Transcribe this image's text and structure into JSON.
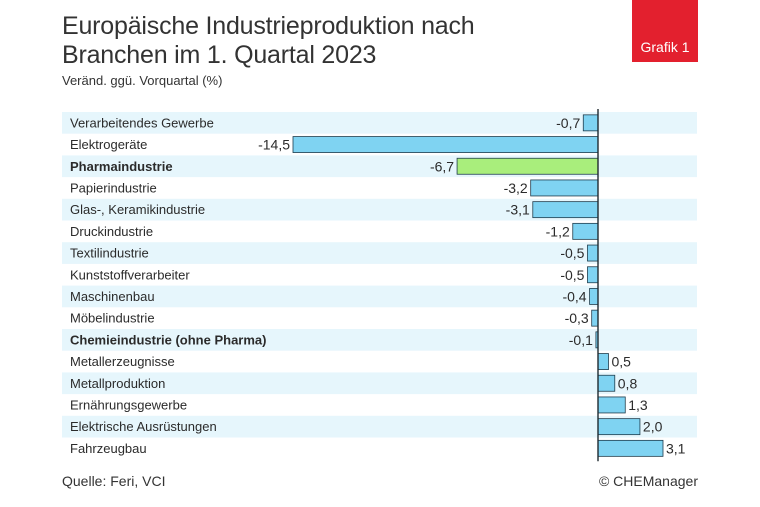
{
  "header": {
    "title_line1": "Europäische Industrieproduktion nach",
    "title_line2": "Branchen im 1. Quartal 2023",
    "subtitle": "Veränd. ggü. Vorquartal (%)",
    "badge": "Grafik 1"
  },
  "footer": {
    "source": "Quelle: Feri, VCI",
    "copyright": "© CHEManager"
  },
  "colors": {
    "bar": "#7fd3f2",
    "bar_highlight": "#a9ee7c",
    "bar_stroke": "#1f3d4d",
    "stripe": "#e6f6fc",
    "axis": "#1f2a30"
  },
  "chart_data": {
    "type": "bar",
    "orientation": "horizontal",
    "title": "Europäische Industrieproduktion nach Branchen im 1. Quartal 2023",
    "ylabel": "Veränd. ggü. Vorquartal (%)",
    "xlim": [
      -14.5,
      3.1
    ],
    "categories": [
      "Verarbeitendes Gewerbe",
      "Elektrogeräte",
      "Pharmaindustrie",
      "Papierindustrie",
      "Glas-, Keramikindustrie",
      "Druckindustrie",
      "Textilindustrie",
      "Kunststoffverarbeiter",
      "Maschinenbau",
      "Möbelindustrie",
      "Chemieindustrie (ohne Pharma)",
      "Metallerzeugnisse",
      "Metallproduktion",
      "Ernährungsgewerbe",
      "Elektrische Ausrüstungen",
      "Fahrzeugbau"
    ],
    "values": [
      -0.7,
      -14.5,
      -6.7,
      -3.2,
      -3.1,
      -1.2,
      -0.5,
      -0.5,
      -0.4,
      -0.3,
      -0.1,
      0.5,
      0.8,
      1.3,
      2.0,
      3.1
    ],
    "value_labels": [
      "-0,7",
      "-14,5",
      "-6,7",
      "-3,2",
      "-3,1",
      "-1,2",
      "-0,5",
      "-0,5",
      "-0,4",
      "-0,3",
      "-0,1",
      "0,5",
      "0,8",
      "1,3",
      "2,0",
      "3,1"
    ],
    "bold": [
      false,
      false,
      true,
      false,
      false,
      false,
      false,
      false,
      false,
      false,
      true,
      false,
      false,
      false,
      false,
      false
    ],
    "highlight": [
      false,
      false,
      true,
      false,
      false,
      false,
      false,
      false,
      false,
      false,
      false,
      false,
      false,
      false,
      false,
      false
    ]
  }
}
